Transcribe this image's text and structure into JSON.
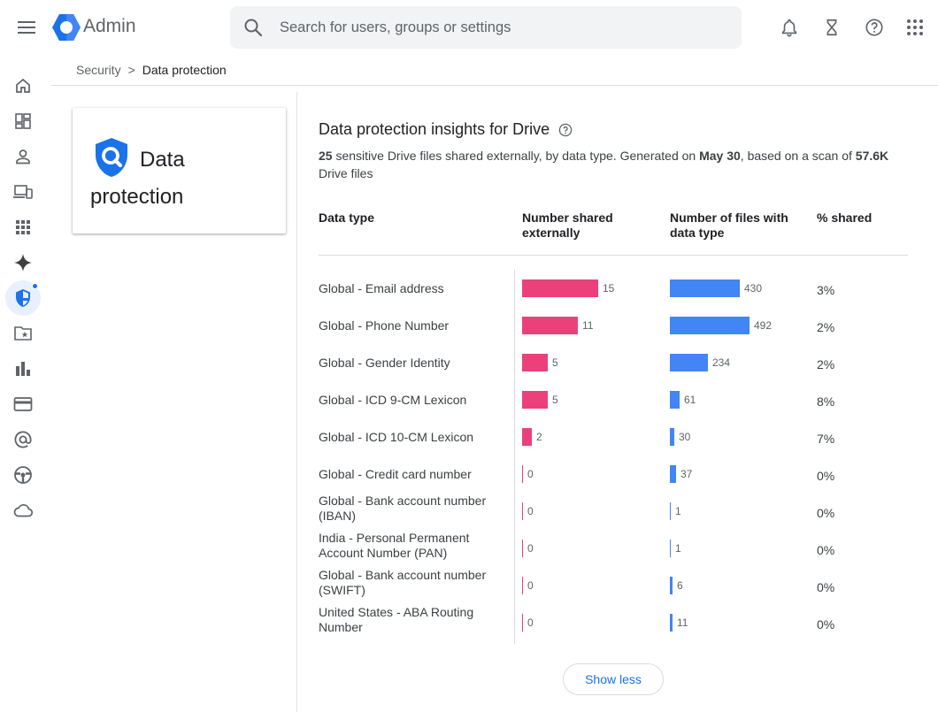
{
  "app": {
    "name": "Admin"
  },
  "search": {
    "placeholder": "Search for users, groups or settings"
  },
  "topbar_icons": [
    "notifications-icon",
    "hourglass-icon",
    "help-icon",
    "apps-grid-icon"
  ],
  "rail": [
    {
      "name": "home-icon"
    },
    {
      "name": "dashboard-icon"
    },
    {
      "name": "person-icon"
    },
    {
      "name": "devices-icon"
    },
    {
      "name": "apps-icon"
    },
    {
      "name": "gemini-icon"
    },
    {
      "name": "security-shield-icon",
      "active": true
    },
    {
      "name": "folder-star-icon"
    },
    {
      "name": "reporting-icon"
    },
    {
      "name": "billing-icon"
    },
    {
      "name": "account-at-icon"
    },
    {
      "name": "rules-wheel-icon"
    },
    {
      "name": "cloud-icon"
    }
  ],
  "breadcrumb": {
    "parent": "Security",
    "separator": ">",
    "current": "Data protection"
  },
  "card": {
    "title": "Data protection"
  },
  "insights": {
    "title": "Data protection insights for Drive",
    "subtitle_count": "25",
    "subtitle_part1": " sensitive Drive files shared externally, by data type. Generated on ",
    "subtitle_date": "May 30",
    "subtitle_part2": ", based on a scan of ",
    "subtitle_scan": "57.6K",
    "subtitle_part3": " Drive files",
    "columns": {
      "type": "Data type",
      "shared": "Number shared externally",
      "files": "Number of files with data type",
      "pct": "% shared"
    },
    "show_less": "Show less"
  },
  "chart_data": {
    "type": "bar",
    "categories": [
      "Global - Email address",
      "Global - Phone Number",
      "Global - Gender Identity",
      "Global - ICD 9-CM Lexicon",
      "Global - ICD 10-CM Lexicon",
      "Global - Credit card number",
      "Global - Bank account number (IBAN)",
      "India - Personal Permanent Account Number (PAN)",
      "Global - Bank account number (SWIFT)",
      "United States - ABA Routing Number"
    ],
    "series": [
      {
        "name": "Number shared externally",
        "values": [
          15,
          11,
          5,
          5,
          2,
          0,
          0,
          0,
          0,
          0
        ]
      },
      {
        "name": "Number of files with data type",
        "values": [
          430,
          492,
          234,
          61,
          30,
          37,
          1,
          1,
          6,
          11
        ]
      }
    ],
    "pct_shared": [
      "3%",
      "2%",
      "2%",
      "8%",
      "7%",
      "0%",
      "0%",
      "0%",
      "0%",
      "0%"
    ],
    "colors": {
      "shared": "#ec407a",
      "files": "#4285f4"
    }
  }
}
